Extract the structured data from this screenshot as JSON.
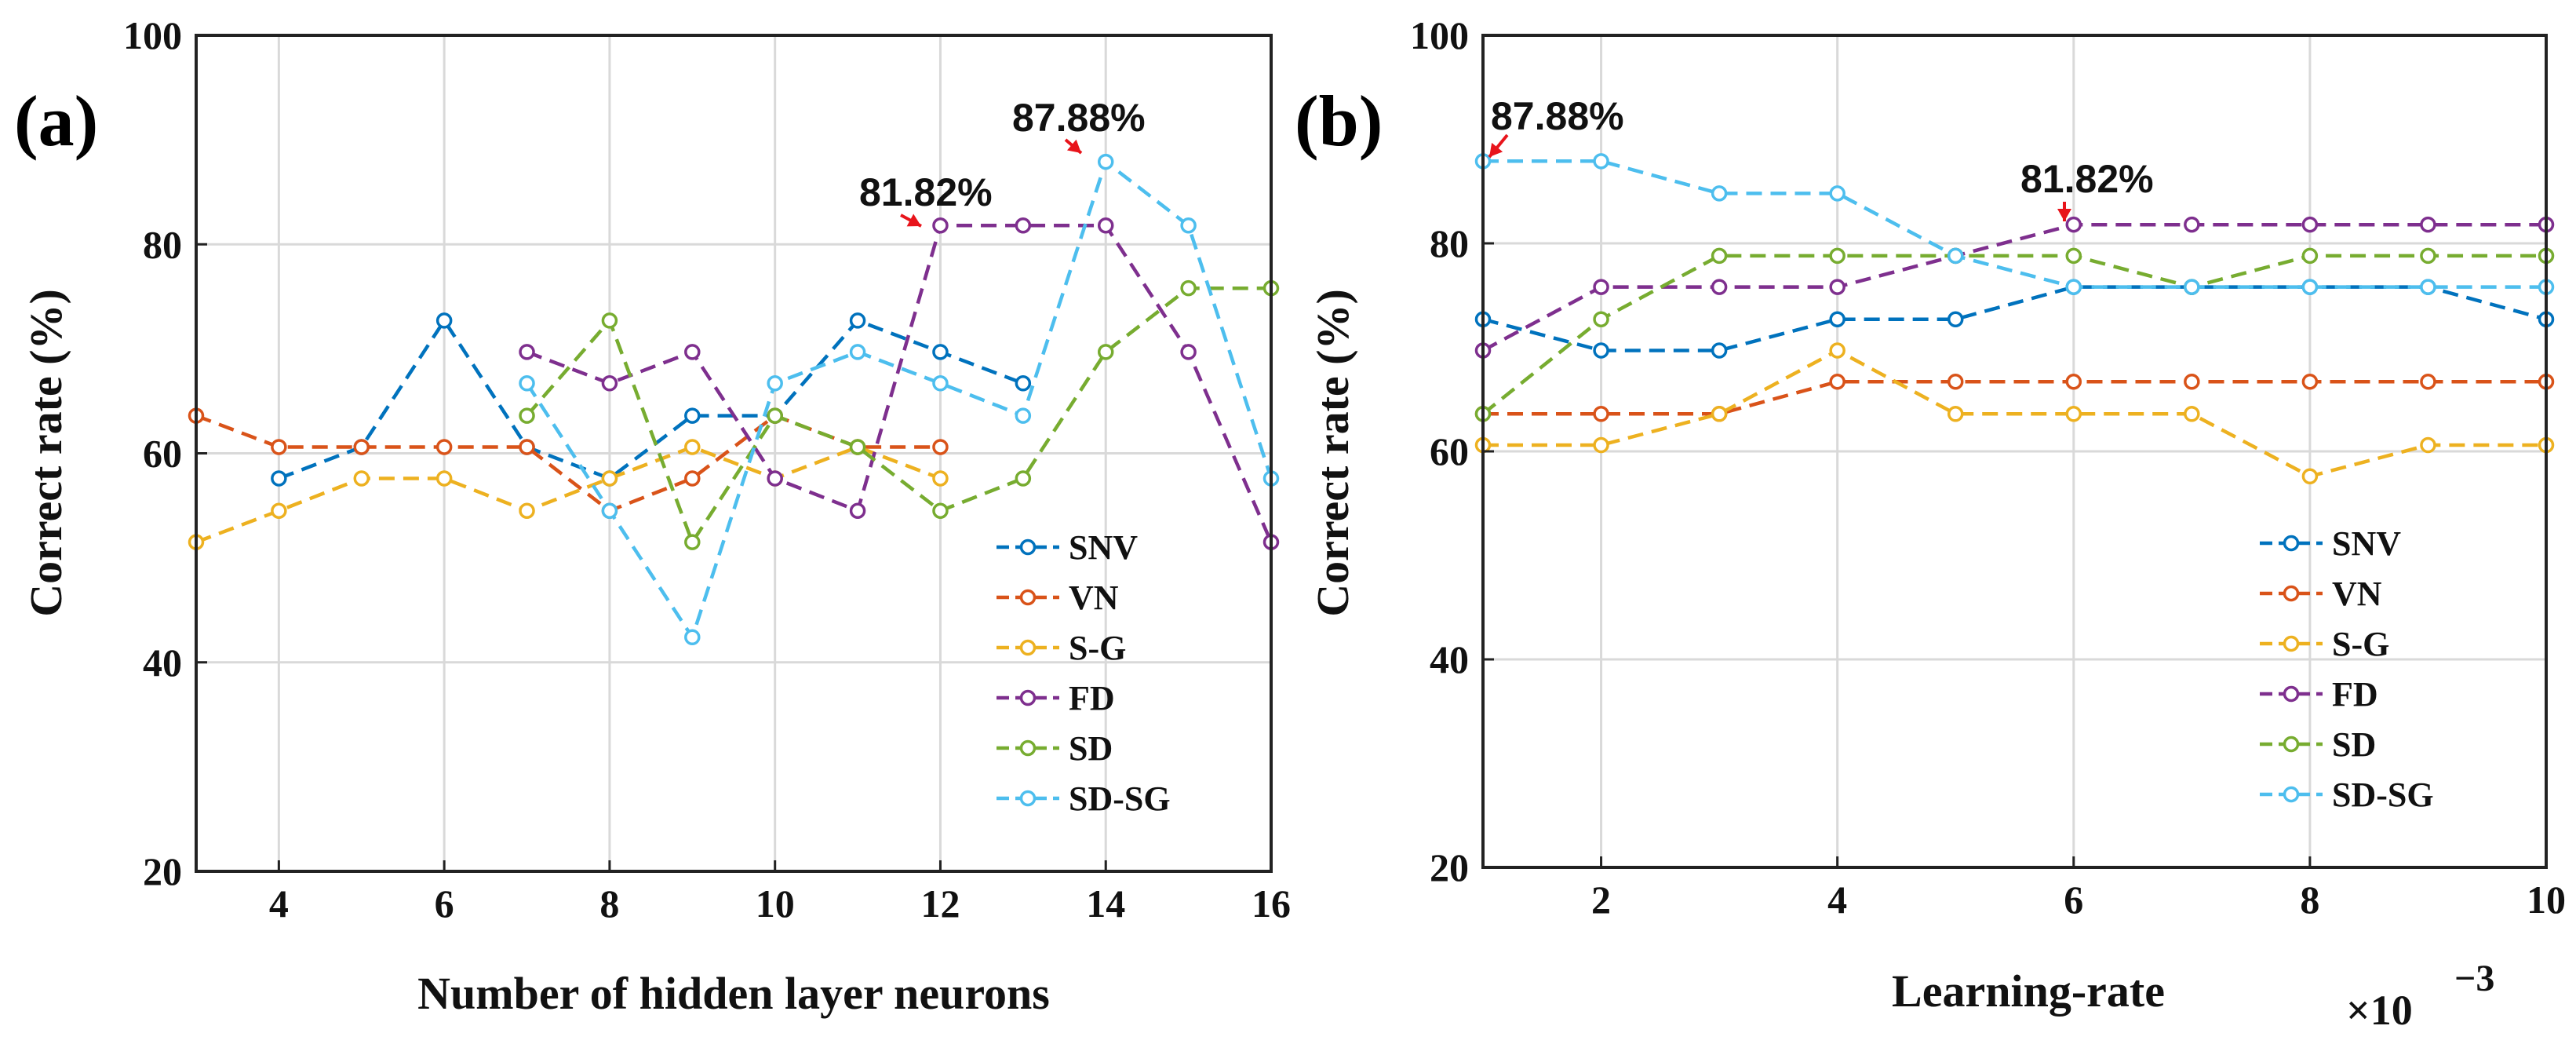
{
  "colors": {
    "SNV": "#0072BD",
    "VN": "#D95319",
    "S-G": "#EDB120",
    "FD": "#7E2F8E",
    "SD": "#77AC30",
    "SD-SG": "#4DBEEE",
    "annotation_arrow": "#E8141B",
    "grid": "#d9d9d9"
  },
  "chart_data": [
    {
      "type": "line",
      "panel_label": "(a)",
      "xlabel": "Number of hidden layer neurons",
      "ylabel": "Correct rate (%)",
      "xlim": [
        3,
        16
      ],
      "ylim": [
        20,
        100
      ],
      "x_ticks": [
        4,
        6,
        8,
        10,
        12,
        14,
        16
      ],
      "x_tick_labels": [
        "4",
        "6",
        "8",
        "10",
        "12",
        "14",
        "16"
      ],
      "y_ticks": [
        20,
        40,
        60,
        80,
        100
      ],
      "y_tick_labels": [
        "20",
        "40",
        "60",
        "80",
        "100"
      ],
      "grid": true,
      "legend_position": "bottom-right",
      "series": [
        {
          "name": "SNV",
          "x": [
            4,
            5,
            6,
            7,
            8,
            9,
            10,
            11,
            12,
            13
          ],
          "values": [
            57.6,
            60.6,
            72.7,
            60.6,
            57.6,
            63.6,
            63.6,
            72.7,
            69.7,
            66.7
          ]
        },
        {
          "name": "VN",
          "x": [
            3,
            4,
            5,
            6,
            7,
            8,
            9,
            10,
            11,
            12
          ],
          "values": [
            63.6,
            60.6,
            60.6,
            60.6,
            60.6,
            54.5,
            57.6,
            63.6,
            60.6,
            60.6
          ]
        },
        {
          "name": "S-G",
          "x": [
            3,
            4,
            5,
            6,
            7,
            8,
            9,
            10,
            11,
            12
          ],
          "values": [
            51.5,
            54.5,
            57.6,
            57.6,
            54.5,
            57.6,
            60.6,
            57.6,
            60.6,
            57.6
          ]
        },
        {
          "name": "FD",
          "x": [
            7,
            8,
            9,
            10,
            11,
            12,
            13,
            14,
            15,
            16
          ],
          "values": [
            69.7,
            66.7,
            69.7,
            57.6,
            54.5,
            81.8,
            81.8,
            81.8,
            69.7,
            51.5
          ]
        },
        {
          "name": "SD",
          "x": [
            7,
            8,
            9,
            10,
            11,
            12,
            13,
            14,
            15,
            16
          ],
          "values": [
            63.6,
            72.7,
            51.5,
            63.6,
            60.6,
            54.5,
            57.6,
            69.7,
            75.8,
            75.8
          ]
        },
        {
          "name": "SD-SG",
          "x": [
            7,
            8,
            9,
            10,
            11,
            12,
            13,
            14,
            15,
            16
          ],
          "values": [
            66.7,
            54.5,
            42.4,
            66.7,
            69.7,
            66.7,
            63.6,
            87.9,
            81.8,
            57.6
          ]
        }
      ],
      "annotations": [
        {
          "text": "81.82%",
          "x": 12,
          "y": 81.82
        },
        {
          "text": "87.88%",
          "x": 14,
          "y": 87.88
        }
      ]
    },
    {
      "type": "line",
      "panel_label": "(b)",
      "xlabel": "Learning-rate",
      "ylabel": "Correct rate (%)",
      "x_multiplier": "×10",
      "x_multiplier_exponent": "−3",
      "xlim": [
        1,
        10
      ],
      "ylim": [
        20,
        100
      ],
      "x_ticks": [
        2,
        4,
        6,
        8,
        10
      ],
      "x_tick_labels": [
        "2",
        "4",
        "6",
        "8",
        "10"
      ],
      "y_ticks": [
        20,
        40,
        60,
        80,
        100
      ],
      "y_tick_labels": [
        "20",
        "40",
        "60",
        "80",
        "100"
      ],
      "grid": true,
      "legend_position": "bottom-right",
      "series": [
        {
          "name": "SNV",
          "x": [
            1,
            2,
            3,
            4,
            5,
            6,
            7,
            8,
            9,
            10
          ],
          "values": [
            72.7,
            69.7,
            69.7,
            72.7,
            72.7,
            75.8,
            75.8,
            75.8,
            75.8,
            72.7
          ]
        },
        {
          "name": "VN",
          "x": [
            1,
            2,
            3,
            4,
            5,
            6,
            7,
            8,
            9,
            10
          ],
          "values": [
            63.6,
            63.6,
            63.6,
            66.7,
            66.7,
            66.7,
            66.7,
            66.7,
            66.7,
            66.7
          ]
        },
        {
          "name": "S-G",
          "x": [
            1,
            2,
            3,
            4,
            5,
            6,
            7,
            8,
            9,
            10
          ],
          "values": [
            60.6,
            60.6,
            63.6,
            69.7,
            63.6,
            63.6,
            63.6,
            57.6,
            60.6,
            60.6
          ]
        },
        {
          "name": "FD",
          "x": [
            1,
            2,
            3,
            4,
            5,
            6,
            7,
            8,
            9,
            10
          ],
          "values": [
            69.7,
            75.8,
            75.8,
            75.8,
            78.8,
            81.8,
            81.8,
            81.8,
            81.8,
            81.8
          ]
        },
        {
          "name": "SD",
          "x": [
            1,
            2,
            3,
            4,
            5,
            6,
            7,
            8,
            9,
            10
          ],
          "values": [
            63.6,
            72.7,
            78.8,
            78.8,
            78.8,
            78.8,
            75.8,
            78.8,
            78.8,
            78.8
          ]
        },
        {
          "name": "SD-SG",
          "x": [
            1,
            2,
            3,
            4,
            5,
            6,
            7,
            8,
            9,
            10
          ],
          "values": [
            87.9,
            87.9,
            84.8,
            84.8,
            78.8,
            75.8,
            75.8,
            75.8,
            75.8,
            75.8
          ]
        }
      ],
      "annotations": [
        {
          "text": "87.88%",
          "x": 1,
          "y": 87.88
        },
        {
          "text": "81.82%",
          "x": 6,
          "y": 81.82
        }
      ]
    }
  ]
}
